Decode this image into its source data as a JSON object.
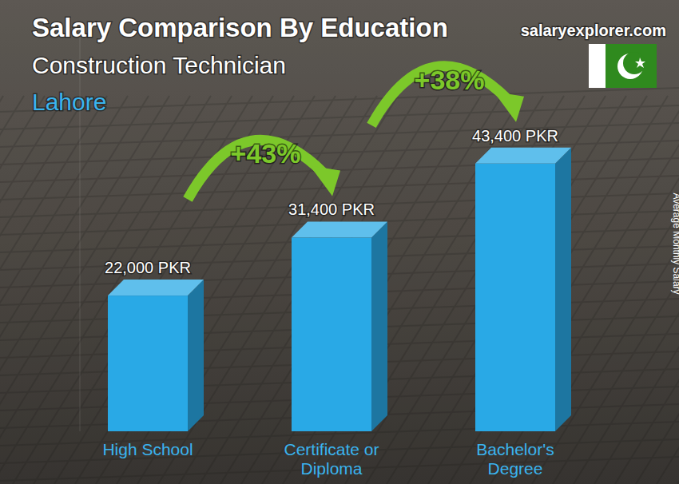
{
  "chart_data": {
    "type": "bar",
    "title": "Salary Comparison By Education",
    "subtitle": "Construction Technician",
    "location": "Lahore",
    "source": "salaryexplorer.com",
    "ylabel": "Average Monthly Salary",
    "categories": [
      "High School",
      "Certificate or Diploma",
      "Bachelor's Degree"
    ],
    "values": [
      22000,
      31400,
      43400
    ],
    "value_labels": [
      "22,000 PKR",
      "31,400 PKR",
      "43,400 PKR"
    ],
    "data_labels": true,
    "annotations": [
      "+43%",
      "+38%"
    ],
    "color": "#29a9e6",
    "ylim": [
      0,
      65000
    ],
    "tick_labels": false
  }
}
